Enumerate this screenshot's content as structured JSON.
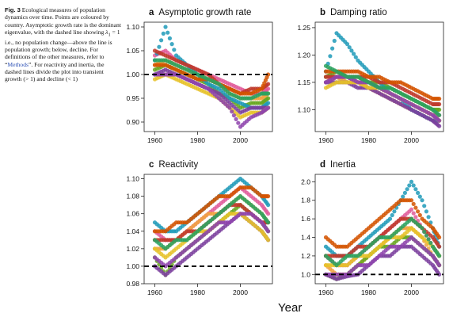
{
  "caption": {
    "fig_label": "Fig. 3",
    "part1": " Ecological measures of population dynamics over time. Points are coloured by country. Asymptotic growth rate is the dominant eigenvalue, with the dashed line showing ",
    "lambda": "λ",
    "lambda_sub": "1",
    "part2": " = 1 i.e., no population change—above the line is population growth; below, decline. For definitions of the other measures, refer to “",
    "link": "Methods",
    "part3": "”. For reactivity and inertia, the dashed lines divide the plot into transient growth (> 1) and decline (< 1)"
  },
  "figure_xlabel": "Year",
  "colors": [
    "#e05a9a",
    "#f1a340",
    "#66a61e",
    "#1f9ab8",
    "#7b3f9e",
    "#c0392b",
    "#e6c229",
    "#d35400",
    "#8e44ad",
    "#2ca25f"
  ],
  "chart_data": [
    {
      "type": "scatter",
      "letter": "a",
      "title": "Asymptotic growth rate",
      "xlim": [
        1955,
        2015
      ],
      "ylim": [
        0.88,
        1.11
      ],
      "x_ticks": [
        1960,
        1980,
        2000
      ],
      "x_tick_labels": [
        "1960",
        "1980",
        "2000"
      ],
      "y_ticks": [
        0.9,
        0.95,
        1.0,
        1.05,
        1.1
      ],
      "y_tick_labels": [
        "0.90",
        "0.95",
        "1.00",
        "1.05",
        "1.10"
      ],
      "reference_line": 1.0,
      "x": [
        1960,
        1965,
        1970,
        1975,
        1980,
        1985,
        1990,
        1995,
        2000,
        2005,
        2010,
        2013
      ],
      "series": [
        {
          "values": [
            1.04,
            1.05,
            1.03,
            1.02,
            1.01,
            1.0,
            0.99,
            0.98,
            0.97,
            0.96,
            0.96,
            0.97
          ]
        },
        {
          "values": [
            1.02,
            1.03,
            1.02,
            1.01,
            1.0,
            0.99,
            0.98,
            0.96,
            0.95,
            0.95,
            0.95,
            0.96
          ]
        },
        {
          "values": [
            1.01,
            1.02,
            1.01,
            1.0,
            0.99,
            0.98,
            0.96,
            0.95,
            0.93,
            0.94,
            0.94,
            0.95
          ]
        },
        {
          "values": [
            1.03,
            1.1,
            1.04,
            1.02,
            1.0,
            0.98,
            0.97,
            0.95,
            0.94,
            0.93,
            0.93,
            0.94
          ]
        },
        {
          "values": [
            1.0,
            1.01,
            1.0,
            0.99,
            0.98,
            0.97,
            0.96,
            0.94,
            0.92,
            0.93,
            0.93,
            0.93
          ]
        },
        {
          "values": [
            1.05,
            1.04,
            1.03,
            1.02,
            1.01,
            1.0,
            0.98,
            0.97,
            0.96,
            0.97,
            0.97,
            0.98
          ]
        },
        {
          "values": [
            0.99,
            1.0,
            0.99,
            0.98,
            0.97,
            0.96,
            0.95,
            0.93,
            0.91,
            0.92,
            0.92,
            0.93
          ]
        },
        {
          "values": [
            1.02,
            1.02,
            1.01,
            1.0,
            0.99,
            0.99,
            0.98,
            0.97,
            0.96,
            0.96,
            0.97,
            1.0
          ]
        },
        {
          "values": [
            1.0,
            1.0,
            1.0,
            0.99,
            0.98,
            0.97,
            0.95,
            0.93,
            0.89,
            0.91,
            0.92,
            0.93
          ]
        },
        {
          "values": [
            1.03,
            1.03,
            1.02,
            1.01,
            1.0,
            0.99,
            0.98,
            0.96,
            0.95,
            0.95,
            0.96,
            0.96
          ]
        }
      ]
    },
    {
      "type": "scatter",
      "letter": "b",
      "title": "Damping ratio",
      "xlim": [
        1955,
        2015
      ],
      "ylim": [
        1.06,
        1.26
      ],
      "x_ticks": [
        1960,
        1980,
        2000
      ],
      "x_tick_labels": [
        "1960",
        "1980",
        "2000"
      ],
      "y_ticks": [
        1.1,
        1.15,
        1.2,
        1.25
      ],
      "y_tick_labels": [
        "1.10",
        "1.15",
        "1.20",
        "1.25"
      ],
      "x": [
        1960,
        1965,
        1970,
        1975,
        1980,
        1985,
        1990,
        1995,
        2000,
        2005,
        2010,
        2013
      ],
      "series": [
        {
          "values": [
            1.16,
            1.16,
            1.16,
            1.15,
            1.15,
            1.14,
            1.13,
            1.12,
            1.11,
            1.1,
            1.09,
            1.09
          ]
        },
        {
          "values": [
            1.15,
            1.16,
            1.15,
            1.15,
            1.14,
            1.13,
            1.12,
            1.11,
            1.1,
            1.09,
            1.08,
            1.08
          ]
        },
        {
          "values": [
            1.16,
            1.17,
            1.16,
            1.16,
            1.15,
            1.15,
            1.14,
            1.13,
            1.12,
            1.11,
            1.1,
            1.1
          ]
        },
        {
          "values": [
            1.17,
            1.24,
            1.22,
            1.19,
            1.17,
            1.15,
            1.13,
            1.12,
            1.1,
            1.09,
            1.08,
            1.08
          ]
        },
        {
          "values": [
            1.15,
            1.15,
            1.15,
            1.14,
            1.14,
            1.13,
            1.12,
            1.11,
            1.1,
            1.09,
            1.08,
            1.07
          ]
        },
        {
          "values": [
            1.16,
            1.16,
            1.16,
            1.16,
            1.16,
            1.15,
            1.15,
            1.14,
            1.13,
            1.12,
            1.11,
            1.11
          ]
        },
        {
          "values": [
            1.14,
            1.15,
            1.15,
            1.15,
            1.14,
            1.14,
            1.13,
            1.12,
            1.11,
            1.1,
            1.09,
            1.08
          ]
        },
        {
          "values": [
            1.17,
            1.17,
            1.17,
            1.17,
            1.16,
            1.16,
            1.15,
            1.15,
            1.14,
            1.13,
            1.12,
            1.12
          ]
        },
        {
          "values": [
            1.15,
            1.16,
            1.16,
            1.15,
            1.15,
            1.14,
            1.13,
            1.12,
            1.11,
            1.1,
            1.09,
            1.08
          ]
        },
        {
          "values": [
            1.18,
            1.17,
            1.16,
            1.16,
            1.15,
            1.14,
            1.14,
            1.13,
            1.12,
            1.11,
            1.1,
            1.09
          ]
        }
      ]
    },
    {
      "type": "scatter",
      "letter": "c",
      "title": "Reactivity",
      "xlim": [
        1955,
        2015
      ],
      "ylim": [
        0.98,
        1.105
      ],
      "x_ticks": [
        1960,
        1980,
        2000
      ],
      "x_tick_labels": [
        "1960",
        "1980",
        "2000"
      ],
      "y_ticks": [
        0.98,
        1.0,
        1.02,
        1.04,
        1.06,
        1.08,
        1.1
      ],
      "y_tick_labels": [
        "0.98",
        "1.00",
        "1.02",
        "1.04",
        "1.06",
        "1.08",
        "1.10"
      ],
      "reference_line": 1.0,
      "x": [
        1960,
        1965,
        1970,
        1975,
        1980,
        1985,
        1990,
        1995,
        2000,
        2005,
        2010,
        2013
      ],
      "series": [
        {
          "values": [
            1.04,
            1.03,
            1.03,
            1.04,
            1.05,
            1.06,
            1.07,
            1.08,
            1.09,
            1.08,
            1.07,
            1.06
          ]
        },
        {
          "values": [
            1.02,
            1.02,
            1.03,
            1.04,
            1.05,
            1.06,
            1.06,
            1.07,
            1.08,
            1.07,
            1.06,
            1.05
          ]
        },
        {
          "values": [
            1.01,
            0.99,
            1.01,
            1.02,
            1.03,
            1.04,
            1.05,
            1.06,
            1.07,
            1.06,
            1.05,
            1.04
          ]
        },
        {
          "values": [
            1.05,
            1.04,
            1.04,
            1.05,
            1.06,
            1.07,
            1.08,
            1.09,
            1.1,
            1.09,
            1.08,
            1.07
          ]
        },
        {
          "values": [
            1.0,
            0.99,
            1.0,
            1.01,
            1.02,
            1.03,
            1.04,
            1.05,
            1.06,
            1.05,
            1.04,
            1.03
          ]
        },
        {
          "values": [
            1.03,
            1.03,
            1.03,
            1.04,
            1.04,
            1.05,
            1.06,
            1.07,
            1.07,
            1.06,
            1.05,
            1.05
          ]
        },
        {
          "values": [
            1.02,
            1.01,
            1.02,
            1.03,
            1.04,
            1.04,
            1.05,
            1.06,
            1.06,
            1.05,
            1.04,
            1.03
          ]
        },
        {
          "values": [
            1.04,
            1.04,
            1.05,
            1.05,
            1.06,
            1.07,
            1.08,
            1.08,
            1.09,
            1.09,
            1.08,
            1.08
          ]
        },
        {
          "values": [
            1.01,
            1.0,
            1.01,
            1.02,
            1.03,
            1.04,
            1.05,
            1.05,
            1.06,
            1.06,
            1.05,
            1.04
          ]
        },
        {
          "values": [
            1.03,
            1.02,
            1.03,
            1.03,
            1.04,
            1.05,
            1.06,
            1.07,
            1.08,
            1.07,
            1.06,
            1.05
          ]
        }
      ]
    },
    {
      "type": "scatter",
      "letter": "d",
      "title": "Inertia",
      "xlim": [
        1955,
        2015
      ],
      "ylim": [
        0.9,
        2.08
      ],
      "x_ticks": [
        1960,
        1980,
        2000
      ],
      "x_tick_labels": [
        "1960",
        "1980",
        "2000"
      ],
      "y_ticks": [
        1.0,
        1.2,
        1.4,
        1.6,
        1.8,
        2.0
      ],
      "y_tick_labels": [
        "1.0",
        "1.2",
        "1.4",
        "1.6",
        "1.8",
        "2.0"
      ],
      "reference_line": 1.0,
      "x": [
        1960,
        1965,
        1970,
        1975,
        1980,
        1985,
        1990,
        1995,
        2000,
        2005,
        2010,
        2013
      ],
      "series": [
        {
          "values": [
            1.2,
            1.1,
            1.1,
            1.2,
            1.3,
            1.4,
            1.5,
            1.6,
            1.7,
            1.5,
            1.3,
            1.2
          ]
        },
        {
          "values": [
            1.1,
            1.0,
            1.0,
            1.1,
            1.2,
            1.3,
            1.4,
            1.5,
            1.5,
            1.4,
            1.2,
            1.1
          ]
        },
        {
          "values": [
            1.0,
            0.95,
            1.0,
            1.1,
            1.2,
            1.3,
            1.3,
            1.4,
            1.4,
            1.3,
            1.2,
            1.1
          ]
        },
        {
          "values": [
            1.3,
            1.2,
            1.2,
            1.3,
            1.4,
            1.5,
            1.6,
            1.8,
            2.0,
            1.8,
            1.5,
            1.3
          ]
        },
        {
          "values": [
            1.0,
            0.95,
            0.98,
            1.0,
            1.1,
            1.2,
            1.2,
            1.3,
            1.3,
            1.2,
            1.1,
            1.0
          ]
        },
        {
          "values": [
            1.2,
            1.2,
            1.2,
            1.3,
            1.3,
            1.4,
            1.5,
            1.6,
            1.6,
            1.5,
            1.4,
            1.3
          ]
        },
        {
          "values": [
            1.1,
            1.1,
            1.1,
            1.2,
            1.2,
            1.3,
            1.4,
            1.4,
            1.5,
            1.4,
            1.3,
            1.2
          ]
        },
        {
          "values": [
            1.4,
            1.3,
            1.3,
            1.4,
            1.5,
            1.6,
            1.7,
            1.8,
            1.8,
            1.6,
            1.5,
            1.4
          ]
        },
        {
          "values": [
            1.0,
            1.0,
            1.0,
            1.1,
            1.1,
            1.2,
            1.3,
            1.3,
            1.4,
            1.3,
            1.2,
            1.1
          ]
        },
        {
          "values": [
            1.2,
            1.1,
            1.2,
            1.2,
            1.3,
            1.4,
            1.4,
            1.5,
            1.6,
            1.5,
            1.3,
            1.2
          ]
        }
      ]
    }
  ]
}
